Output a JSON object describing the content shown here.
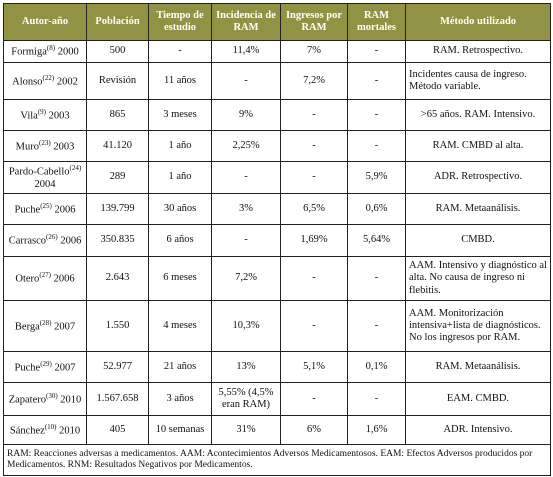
{
  "table": {
    "header": [
      "Autor-año",
      "Población",
      "Tiempo de estudio",
      "Incidencia de RAM",
      "Ingresos por RAM",
      "RAM mortales",
      "Método utilizado"
    ],
    "rows": [
      {
        "author": {
          "name": "Formiga",
          "ref": "(8)",
          "year": "2000"
        },
        "cells": [
          "500",
          "-",
          "11,4%",
          "7%",
          "-",
          "RAM. Retrospectivo."
        ]
      },
      {
        "author": {
          "name": "Alonso",
          "ref": "(22)",
          "year": "2002"
        },
        "cells": [
          "Revisión",
          "11 años",
          "-",
          "7,2%",
          "-",
          "Incidentes causa de ingreso. Método variable."
        ]
      },
      {
        "author": {
          "name": "Vila",
          "ref": "(9)",
          "year": "2003"
        },
        "cells": [
          "865",
          "3 meses",
          "9%",
          "-",
          "-",
          ">65 años. RAM. Intensivo."
        ]
      },
      {
        "author": {
          "name": "Muro",
          "ref": "(23)",
          "year": "2003"
        },
        "cells": [
          "41.120",
          "1 año",
          "2,25%",
          "-",
          "-",
          "RAM. CMBD al alta."
        ]
      },
      {
        "author": {
          "name": "Pardo-Cabello",
          "ref": "(24)",
          "year": "2004"
        },
        "cells": [
          "289",
          "1 año",
          "-",
          "-",
          "5,9%",
          "ADR. Retrospectivo."
        ]
      },
      {
        "author": {
          "name": "Puche",
          "ref": "(25)",
          "year": "2006"
        },
        "cells": [
          "139.799",
          "30 años",
          "3%",
          "6,5%",
          "0,6%",
          "RAM. Metaanálisis."
        ]
      },
      {
        "author": {
          "name": "Carrasco",
          "ref": "(26)",
          "year": "2006"
        },
        "cells": [
          "350.835",
          "6 años",
          "-",
          "1,69%",
          "5,64%",
          "CMBD."
        ]
      },
      {
        "author": {
          "name": "Otero",
          "ref": "(27)",
          "year": "2006"
        },
        "cells": [
          "2.643",
          "6 meses",
          "7,2%",
          "-",
          "-",
          "AAM. Intensivo y diagnóstico al alta. No causa de ingreso ni flebitis."
        ]
      },
      {
        "author": {
          "name": "Berga",
          "ref": "(28)",
          "year": "2007"
        },
        "cells": [
          "1.550",
          "4 meses",
          "10,3%",
          "-",
          "-",
          "AAM. Monitorización intensiva+lista de diagnósticos. No los ingresos por RAM."
        ]
      },
      {
        "author": {
          "name": "Puche",
          "ref": "(29)",
          "year": "2007"
        },
        "cells": [
          "52.977",
          "21 años",
          "13%",
          "5,1%",
          "0,1%",
          "RAM. Metaanálisis."
        ]
      },
      {
        "author": {
          "name": "Zapatero",
          "ref": "(30)",
          "year": "2010"
        },
        "cells": [
          "1.567.658",
          "3 años",
          "5,55% (4,5% eran RAM)",
          "-",
          "-",
          "EAM. CMBD."
        ]
      },
      {
        "author": {
          "name": "Sánchez",
          "ref": "(10)",
          "year": "2010"
        },
        "cells": [
          "405",
          "10 semanas",
          "31%",
          "6%",
          "1,6%",
          "ADR. Intensivo."
        ]
      }
    ]
  },
  "note": "RAM: Reacciones adversas a medicamentos. AAM: Acontecimientos Adversos Medicamentosos. EAM: Efectos Adversos producidos por Medicamentos. RNM: Resultados Negativos por Medicamentos."
}
